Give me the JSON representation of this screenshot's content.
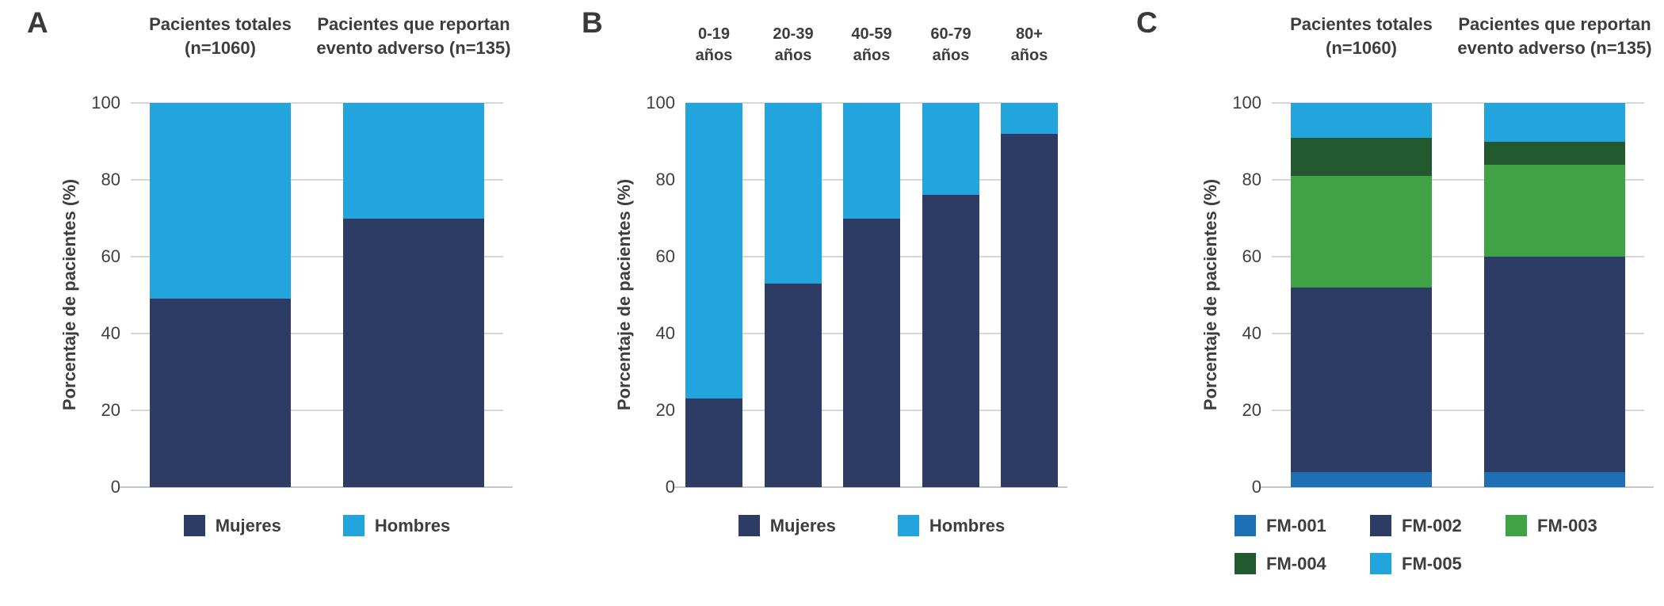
{
  "figure": {
    "background": "#ffffff",
    "text_color": "#3d3d3d"
  },
  "chart_data": [
    {
      "type": "bar",
      "stacked": true,
      "panel": "A",
      "categories": [
        [
          "Pacientes totales",
          "(n=1060)"
        ],
        [
          "Pacientes que reportan",
          "evento adverso (n=135)"
        ]
      ],
      "series": [
        {
          "name": "Mujeres",
          "color": "#2d3c64",
          "values": [
            49,
            70
          ]
        },
        {
          "name": "Hombres",
          "color": "#21a5dc",
          "values": [
            51,
            30
          ]
        }
      ],
      "ylabel": "Porcentaje de pacientes (%)",
      "ylim": [
        0,
        100
      ],
      "yticks": [
        0,
        20,
        40,
        60,
        80,
        100
      ],
      "grid": true,
      "legend_position": "bottom"
    },
    {
      "type": "bar",
      "stacked": true,
      "panel": "B",
      "categories": [
        [
          "0-19",
          "años"
        ],
        [
          "20-39",
          "años"
        ],
        [
          "40-59",
          "años"
        ],
        [
          "60-79",
          "años"
        ],
        [
          "80+",
          "años"
        ]
      ],
      "series": [
        {
          "name": "Mujeres",
          "color": "#2d3c64",
          "values": [
            23,
            53,
            70,
            76,
            92
          ]
        },
        {
          "name": "Hombres",
          "color": "#21a5dc",
          "values": [
            77,
            47,
            30,
            24,
            8
          ]
        }
      ],
      "ylabel": "Porcentaje de pacientes (%)",
      "ylim": [
        0,
        100
      ],
      "yticks": [
        0,
        20,
        40,
        60,
        80,
        100
      ],
      "grid": true,
      "legend_position": "bottom"
    },
    {
      "type": "bar",
      "stacked": true,
      "panel": "C",
      "categories": [
        [
          "Pacientes totales",
          "(n=1060)"
        ],
        [
          "Pacientes que reportan",
          "evento adverso (n=135)"
        ]
      ],
      "series": [
        {
          "name": "FM-001",
          "color": "#1e6fb4",
          "values": [
            4,
            4
          ]
        },
        {
          "name": "FM-002",
          "color": "#2d3c64",
          "values": [
            48,
            56
          ]
        },
        {
          "name": "FM-003",
          "color": "#3fa245",
          "values": [
            29,
            24
          ]
        },
        {
          "name": "FM-004",
          "color": "#23592f",
          "values": [
            10,
            6
          ]
        },
        {
          "name": "FM-005",
          "color": "#21a5dc",
          "values": [
            9,
            10
          ]
        }
      ],
      "ylabel": "Porcentaje de pacientes (%)",
      "ylim": [
        0,
        100
      ],
      "yticks": [
        0,
        20,
        40,
        60,
        80,
        100
      ],
      "grid": true,
      "legend_position": "bottom"
    }
  ]
}
